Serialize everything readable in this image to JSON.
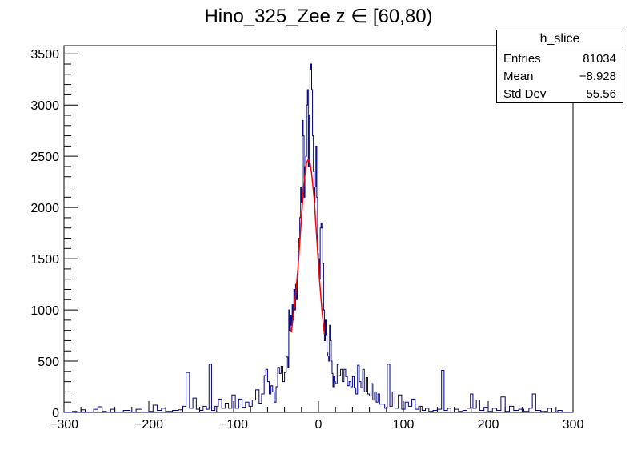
{
  "chart_data": {
    "type": "histogram",
    "title": "Hino_325_Zee z  ∈ [60,80)",
    "xlim": [
      -300,
      300
    ],
    "ylim": [
      0,
      3580
    ],
    "x_ticks": [
      -300,
      -200,
      -100,
      0,
      100,
      200,
      300
    ],
    "y_ticks": [
      0,
      500,
      1000,
      1500,
      2000,
      2500,
      3000,
      3500
    ],
    "line_color": "#000080",
    "fit_color": "#ff0000",
    "stats_box": {
      "name": "h_slice",
      "rows": [
        {
          "label": "Entries",
          "value": "81034"
        },
        {
          "label": "Mean",
          "value": "−8.928"
        },
        {
          "label": "Std Dev",
          "value": "55.56"
        }
      ]
    },
    "bins": [
      [
        -300,
        0
      ],
      [
        -290,
        10
      ],
      [
        -285,
        0
      ],
      [
        -280,
        25
      ],
      [
        -275,
        0
      ],
      [
        -265,
        30
      ],
      [
        -260,
        55
      ],
      [
        -255,
        10
      ],
      [
        -250,
        0
      ],
      [
        -245,
        30
      ],
      [
        -240,
        0
      ],
      [
        -230,
        20
      ],
      [
        -222,
        0
      ],
      [
        -215,
        30
      ],
      [
        -208,
        0
      ],
      [
        -200,
        10
      ],
      [
        -195,
        70
      ],
      [
        -190,
        20
      ],
      [
        -185,
        40
      ],
      [
        -180,
        10
      ],
      [
        -172,
        20
      ],
      [
        -165,
        25
      ],
      [
        -160,
        60
      ],
      [
        -156,
        390
      ],
      [
        -152,
        40
      ],
      [
        -148,
        140
      ],
      [
        -144,
        30
      ],
      [
        -140,
        20
      ],
      [
        -136,
        60
      ],
      [
        -132,
        30
      ],
      [
        -129,
        470
      ],
      [
        -126,
        20
      ],
      [
        -122,
        60
      ],
      [
        -118,
        130
      ],
      [
        -114,
        40
      ],
      [
        -110,
        90
      ],
      [
        -106,
        40
      ],
      [
        -102,
        170
      ],
      [
        -98,
        40
      ],
      [
        -94,
        130
      ],
      [
        -90,
        50
      ],
      [
        -86,
        100
      ],
      [
        -82,
        60
      ],
      [
        -78,
        120
      ],
      [
        -74,
        220
      ],
      [
        -70,
        90
      ],
      [
        -67,
        180
      ],
      [
        -64,
        360
      ],
      [
        -62,
        420
      ],
      [
        -60,
        300
      ],
      [
        -58,
        180
      ],
      [
        -56,
        260
      ],
      [
        -54,
        200
      ],
      [
        -52,
        100
      ],
      [
        -50,
        250
      ],
      [
        -48,
        440
      ],
      [
        -46,
        380
      ],
      [
        -44,
        450
      ],
      [
        -42,
        300
      ],
      [
        -40,
        390
      ],
      [
        -38,
        540
      ],
      [
        -36,
        440
      ],
      [
        -35,
        1000
      ],
      [
        -34,
        800
      ],
      [
        -33,
        950
      ],
      [
        -32,
        850
      ],
      [
        -31,
        1050
      ],
      [
        -30,
        900
      ],
      [
        -29,
        1200
      ],
      [
        -28,
        1000
      ],
      [
        -27,
        1250
      ],
      [
        -26,
        1100
      ],
      [
        -25,
        1350
      ],
      [
        -24,
        1550
      ],
      [
        -23,
        1700
      ],
      [
        -22,
        1900
      ],
      [
        -21,
        2200
      ],
      [
        -20,
        2050
      ],
      [
        -19,
        2850
      ],
      [
        -18,
        2700
      ],
      [
        -17,
        2100
      ],
      [
        -16,
        2400
      ],
      [
        -15,
        2500
      ],
      [
        -14,
        3000
      ],
      [
        -13,
        3150
      ],
      [
        -12,
        2400
      ],
      [
        -11,
        2900
      ],
      [
        -10,
        3350
      ],
      [
        -9,
        3400
      ],
      [
        -8,
        3150
      ],
      [
        -7,
        2700
      ],
      [
        -6,
        2350
      ],
      [
        -5,
        2050
      ],
      [
        -4,
        2200
      ],
      [
        -3,
        2600
      ],
      [
        -2,
        2100
      ],
      [
        -1,
        1550
      ],
      [
        0,
        1500
      ],
      [
        1,
        1300
      ],
      [
        2,
        1800
      ],
      [
        3,
        1850
      ],
      [
        4,
        1800
      ],
      [
        5,
        1450
      ],
      [
        6,
        1000
      ],
      [
        7,
        700
      ],
      [
        8,
        900
      ],
      [
        9,
        750
      ],
      [
        10,
        580
      ],
      [
        11,
        550
      ],
      [
        12,
        500
      ],
      [
        13,
        850
      ],
      [
        14,
        700
      ],
      [
        15,
        500
      ],
      [
        16,
        380
      ],
      [
        17,
        250
      ],
      [
        18,
        350
      ],
      [
        19,
        300
      ],
      [
        20,
        280
      ],
      [
        22,
        470
      ],
      [
        24,
        360
      ],
      [
        26,
        420
      ],
      [
        28,
        300
      ],
      [
        30,
        420
      ],
      [
        32,
        350
      ],
      [
        34,
        260
      ],
      [
        36,
        300
      ],
      [
        38,
        250
      ],
      [
        40,
        350
      ],
      [
        42,
        240
      ],
      [
        44,
        180
      ],
      [
        46,
        460
      ],
      [
        48,
        300
      ],
      [
        50,
        240
      ],
      [
        52,
        420
      ],
      [
        54,
        200
      ],
      [
        56,
        340
      ],
      [
        58,
        180
      ],
      [
        60,
        160
      ],
      [
        62,
        280
      ],
      [
        64,
        120
      ],
      [
        66,
        200
      ],
      [
        68,
        100
      ],
      [
        70,
        180
      ],
      [
        72,
        80
      ],
      [
        75,
        80
      ],
      [
        78,
        40
      ],
      [
        81,
        470
      ],
      [
        84,
        60
      ],
      [
        87,
        200
      ],
      [
        90,
        40
      ],
      [
        94,
        170
      ],
      [
        98,
        30
      ],
      [
        102,
        100
      ],
      [
        106,
        60
      ],
      [
        110,
        130
      ],
      [
        114,
        30
      ],
      [
        118,
        60
      ],
      [
        122,
        20
      ],
      [
        126,
        40
      ],
      [
        130,
        10
      ],
      [
        135,
        20
      ],
      [
        140,
        30
      ],
      [
        145,
        410
      ],
      [
        148,
        20
      ],
      [
        152,
        40
      ],
      [
        156,
        0
      ],
      [
        160,
        30
      ],
      [
        165,
        10
      ],
      [
        170,
        20
      ],
      [
        175,
        40
      ],
      [
        179,
        180
      ],
      [
        182,
        40
      ],
      [
        186,
        120
      ],
      [
        190,
        20
      ],
      [
        195,
        50
      ],
      [
        200,
        10
      ],
      [
        205,
        40
      ],
      [
        210,
        20
      ],
      [
        215,
        150
      ],
      [
        220,
        10
      ],
      [
        225,
        60
      ],
      [
        230,
        20
      ],
      [
        236,
        30
      ],
      [
        242,
        10
      ],
      [
        248,
        40
      ],
      [
        252,
        180
      ],
      [
        256,
        20
      ],
      [
        262,
        10
      ],
      [
        270,
        40
      ],
      [
        275,
        0
      ],
      [
        282,
        20
      ],
      [
        287,
        0
      ],
      [
        300,
        0
      ]
    ],
    "fit": [
      [
        -32,
        780
      ],
      [
        -28,
        1050
      ],
      [
        -24,
        1420
      ],
      [
        -20,
        1900
      ],
      [
        -17,
        2250
      ],
      [
        -14,
        2440
      ],
      [
        -12,
        2470
      ],
      [
        -10,
        2440
      ],
      [
        -8,
        2330
      ],
      [
        -5,
        2080
      ],
      [
        -2,
        1700
      ],
      [
        1,
        1320
      ],
      [
        4,
        1000
      ],
      [
        7,
        760
      ]
    ]
  }
}
